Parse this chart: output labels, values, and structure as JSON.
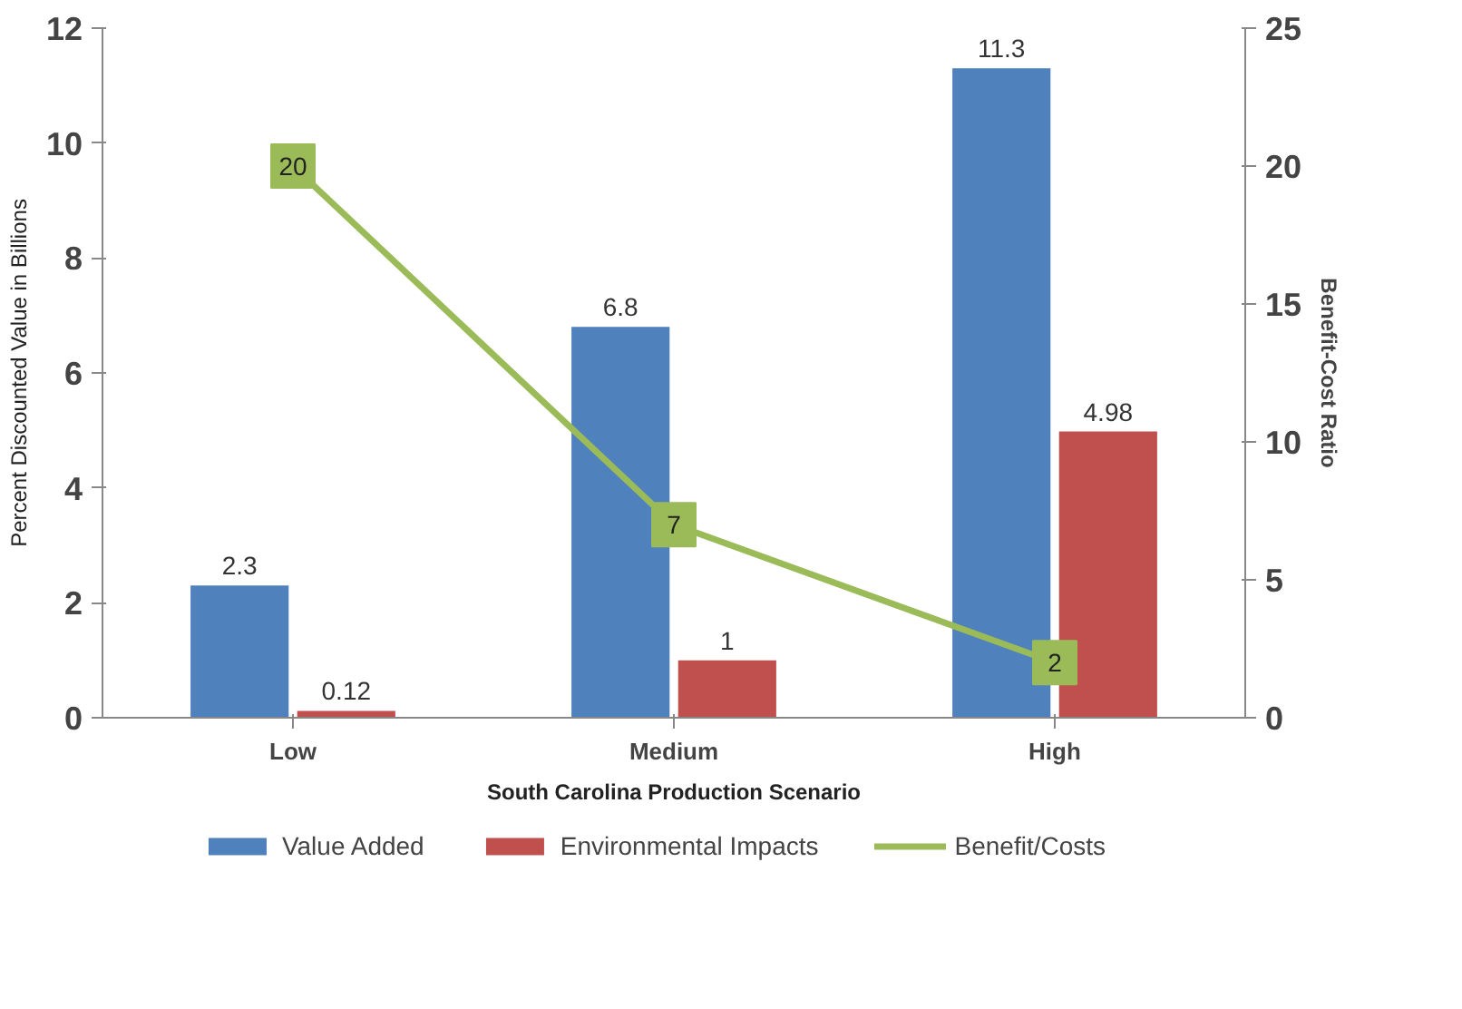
{
  "chart_data": {
    "type": "bar",
    "xlabel": "South Carolina Production Scenario",
    "ylabel": "Percent Discounted Value in Billions",
    "y2label": "Benefit-Cost Ratio",
    "categories": [
      "Low",
      "Medium",
      "High"
    ],
    "series": [
      {
        "name": "Value Added",
        "color": "#4f81bd",
        "values": [
          2.3,
          6.8,
          11.3
        ]
      },
      {
        "name": "Environmental Impacts",
        "color": "#c0504d",
        "values": [
          0.12,
          1,
          4.98
        ]
      },
      {
        "name": "Benefit/Costs",
        "type": "line",
        "axis": "y2",
        "color": "#9bbb59",
        "marker": "square",
        "values": [
          20,
          7,
          2
        ]
      }
    ],
    "ylim": [
      0,
      12
    ],
    "yticks": [
      0,
      2,
      4,
      6,
      8,
      10,
      12
    ],
    "y2lim": [
      0,
      25
    ],
    "y2ticks": [
      0,
      5,
      10,
      15,
      20,
      25
    ],
    "data_labels": true,
    "grid": false,
    "legend": "bottom"
  }
}
